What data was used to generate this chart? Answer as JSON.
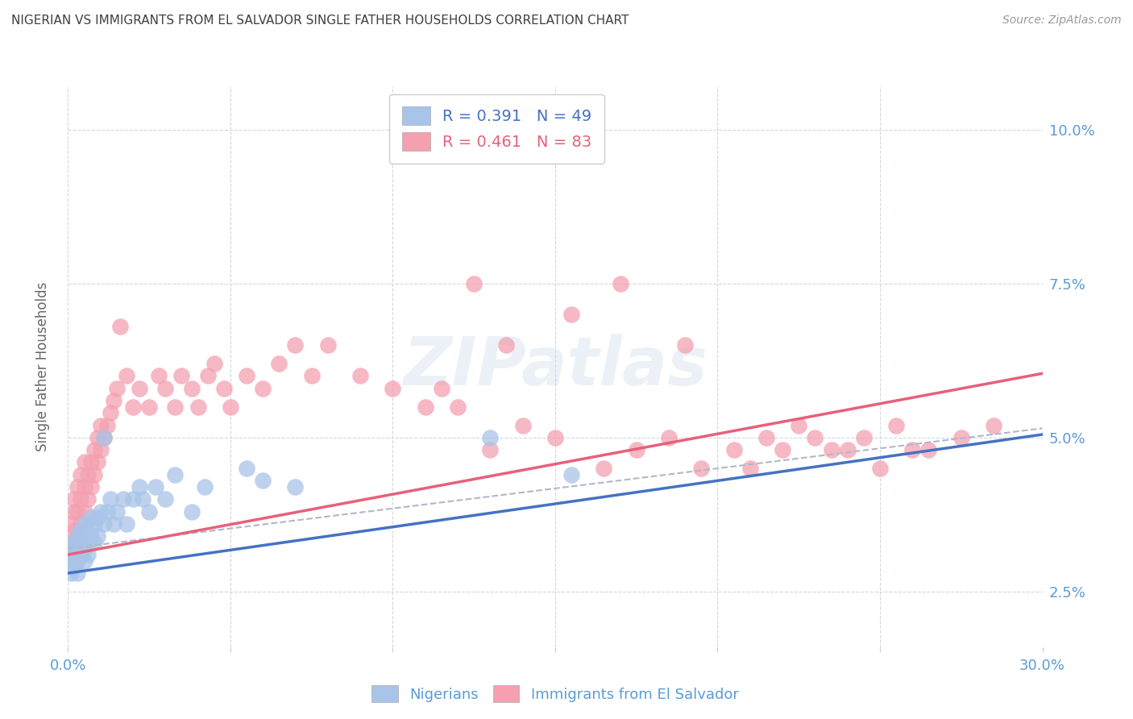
{
  "title": "NIGERIAN VS IMMIGRANTS FROM EL SALVADOR SINGLE FATHER HOUSEHOLDS CORRELATION CHART",
  "source": "Source: ZipAtlas.com",
  "ylabel": "Single Father Households",
  "nigerian_color": "#a8c4e8",
  "salvador_color": "#f4a0b0",
  "nigerian_line_color": "#4472c4",
  "salvador_line_color": "#e8607a",
  "dashed_line_color": "#b0b8c8",
  "background_color": "#ffffff",
  "grid_color": "#d0d8e0",
  "axis_label_color": "#5b9bd5",
  "title_color": "#404040",
  "xlim": [
    0.0,
    0.3
  ],
  "ylim": [
    0.016,
    0.107
  ],
  "x_tick_vals": [
    0.0,
    0.05,
    0.1,
    0.15,
    0.2,
    0.25,
    0.3
  ],
  "y_tick_vals": [
    0.025,
    0.05,
    0.075,
    0.1
  ],
  "legend_label1": "R = 0.391   N = 49",
  "legend_label2": "R = 0.461   N = 83",
  "legend_bottom1": "Nigerians",
  "legend_bottom2": "Immigrants from El Salvador",
  "watermark": "ZIPatlas",
  "nigerian_R": 0.391,
  "salvador_R": 0.461,
  "nig_intercept": 0.028,
  "nig_slope": 0.075,
  "sal_intercept": 0.031,
  "sal_slope": 0.098,
  "dash_intercept": 0.032,
  "dash_slope": 0.065,
  "nigerian_x": [
    0.001,
    0.001,
    0.001,
    0.002,
    0.002,
    0.002,
    0.003,
    0.003,
    0.003,
    0.003,
    0.004,
    0.004,
    0.004,
    0.005,
    0.005,
    0.005,
    0.005,
    0.006,
    0.006,
    0.006,
    0.007,
    0.007,
    0.008,
    0.008,
    0.009,
    0.009,
    0.01,
    0.011,
    0.011,
    0.012,
    0.013,
    0.014,
    0.015,
    0.017,
    0.018,
    0.02,
    0.022,
    0.023,
    0.025,
    0.027,
    0.03,
    0.033,
    0.038,
    0.042,
    0.055,
    0.06,
    0.07,
    0.13,
    0.155
  ],
  "nigerian_y": [
    0.03,
    0.032,
    0.028,
    0.033,
    0.031,
    0.029,
    0.034,
    0.032,
    0.03,
    0.028,
    0.035,
    0.033,
    0.031,
    0.036,
    0.034,
    0.032,
    0.03,
    0.035,
    0.033,
    0.031,
    0.037,
    0.034,
    0.036,
    0.033,
    0.037,
    0.034,
    0.038,
    0.05,
    0.036,
    0.038,
    0.04,
    0.036,
    0.038,
    0.04,
    0.036,
    0.04,
    0.042,
    0.04,
    0.038,
    0.042,
    0.04,
    0.044,
    0.038,
    0.042,
    0.045,
    0.043,
    0.042,
    0.05,
    0.044
  ],
  "salvador_x": [
    0.001,
    0.001,
    0.001,
    0.002,
    0.002,
    0.002,
    0.003,
    0.003,
    0.003,
    0.004,
    0.004,
    0.004,
    0.005,
    0.005,
    0.005,
    0.006,
    0.006,
    0.007,
    0.007,
    0.008,
    0.008,
    0.009,
    0.009,
    0.01,
    0.01,
    0.011,
    0.012,
    0.013,
    0.014,
    0.015,
    0.016,
    0.018,
    0.02,
    0.022,
    0.025,
    0.028,
    0.03,
    0.033,
    0.035,
    0.038,
    0.04,
    0.043,
    0.045,
    0.048,
    0.05,
    0.055,
    0.06,
    0.065,
    0.07,
    0.075,
    0.08,
    0.09,
    0.1,
    0.11,
    0.115,
    0.12,
    0.13,
    0.14,
    0.15,
    0.165,
    0.175,
    0.185,
    0.195,
    0.205,
    0.215,
    0.225,
    0.235,
    0.245,
    0.255,
    0.265,
    0.275,
    0.285,
    0.125,
    0.135,
    0.155,
    0.17,
    0.19,
    0.21,
    0.22,
    0.23,
    0.24,
    0.25,
    0.26
  ],
  "salvador_y": [
    0.033,
    0.036,
    0.031,
    0.035,
    0.038,
    0.04,
    0.034,
    0.038,
    0.042,
    0.036,
    0.04,
    0.044,
    0.038,
    0.042,
    0.046,
    0.04,
    0.044,
    0.042,
    0.046,
    0.044,
    0.048,
    0.046,
    0.05,
    0.048,
    0.052,
    0.05,
    0.052,
    0.054,
    0.056,
    0.058,
    0.068,
    0.06,
    0.055,
    0.058,
    0.055,
    0.06,
    0.058,
    0.055,
    0.06,
    0.058,
    0.055,
    0.06,
    0.062,
    0.058,
    0.055,
    0.06,
    0.058,
    0.062,
    0.065,
    0.06,
    0.065,
    0.06,
    0.058,
    0.055,
    0.058,
    0.055,
    0.048,
    0.052,
    0.05,
    0.045,
    0.048,
    0.05,
    0.045,
    0.048,
    0.05,
    0.052,
    0.048,
    0.05,
    0.052,
    0.048,
    0.05,
    0.052,
    0.075,
    0.065,
    0.07,
    0.075,
    0.065,
    0.045,
    0.048,
    0.05,
    0.048,
    0.045,
    0.048
  ]
}
